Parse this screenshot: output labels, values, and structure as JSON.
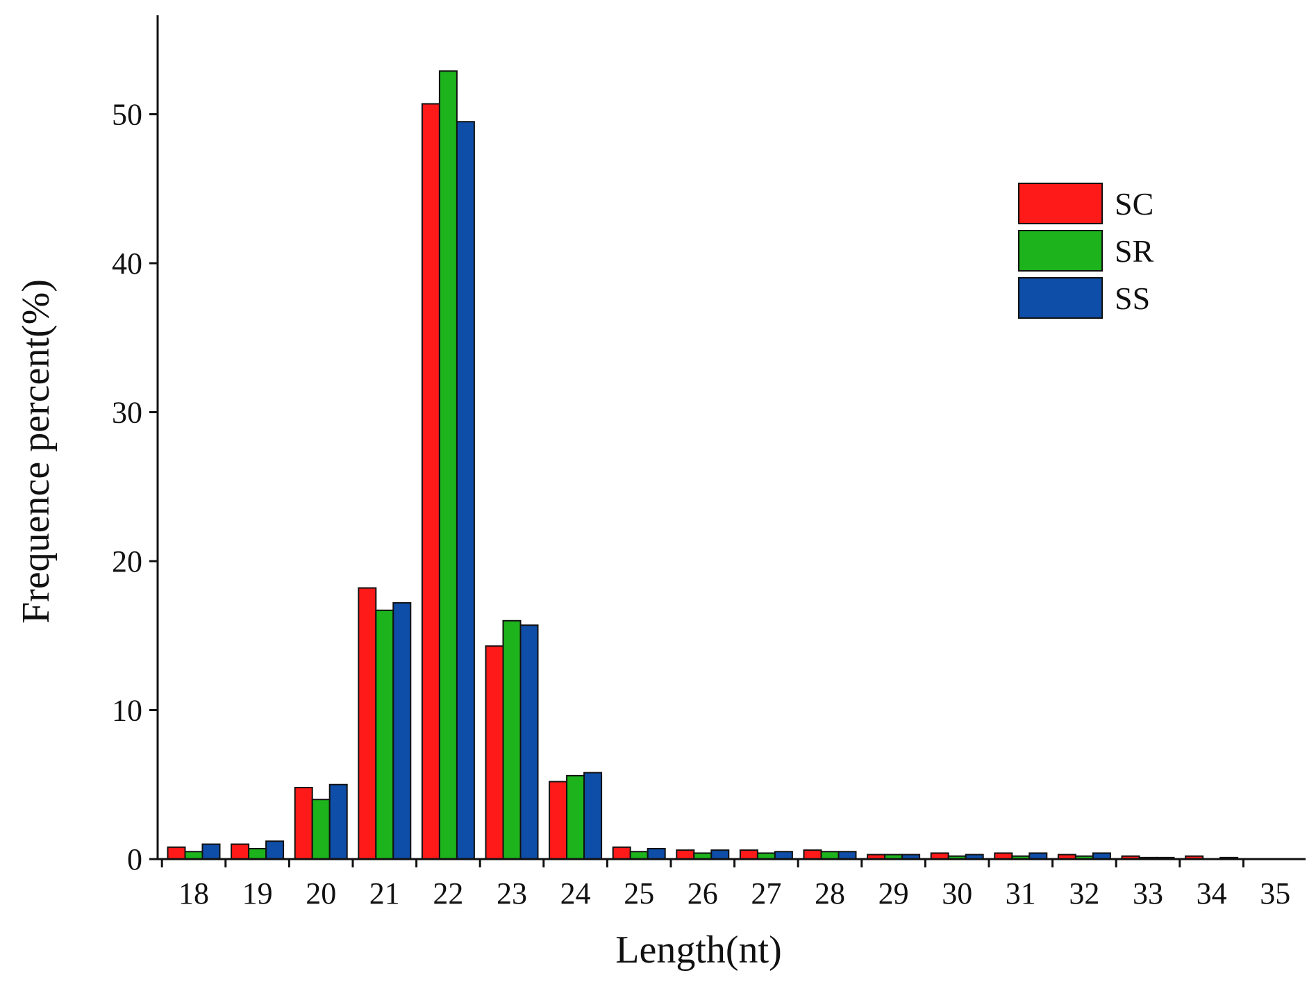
{
  "chart_data": {
    "type": "bar",
    "title": "",
    "xlabel": "Length(nt)",
    "ylabel": "Frequence percent(%)",
    "categories": [
      "18",
      "19",
      "20",
      "21",
      "22",
      "23",
      "24",
      "25",
      "26",
      "27",
      "28",
      "29",
      "30",
      "31",
      "32",
      "33",
      "34",
      "35"
    ],
    "series": [
      {
        "name": "SC",
        "color": "#ff1a1a",
        "values": [
          0.8,
          1.0,
          4.8,
          18.2,
          50.7,
          14.3,
          5.2,
          0.8,
          0.6,
          0.6,
          0.6,
          0.3,
          0.4,
          0.4,
          0.3,
          0.2,
          0.2,
          0.0
        ]
      },
      {
        "name": "SR",
        "color": "#1db31d",
        "values": [
          0.5,
          0.7,
          4.0,
          16.7,
          52.9,
          16.0,
          5.6,
          0.5,
          0.4,
          0.4,
          0.5,
          0.3,
          0.2,
          0.2,
          0.2,
          0.1,
          0.0,
          0.0
        ]
      },
      {
        "name": "SS",
        "color": "#0f4ea8",
        "values": [
          1.0,
          1.2,
          5.0,
          17.2,
          49.5,
          15.7,
          5.8,
          0.7,
          0.6,
          0.5,
          0.5,
          0.3,
          0.3,
          0.4,
          0.4,
          0.1,
          0.1,
          0.0
        ]
      }
    ],
    "yticks": [
      "0",
      "10",
      "20",
      "30",
      "40",
      "50"
    ],
    "ylim": [
      0,
      56
    ],
    "grid": false,
    "legend_position": "top-right"
  }
}
